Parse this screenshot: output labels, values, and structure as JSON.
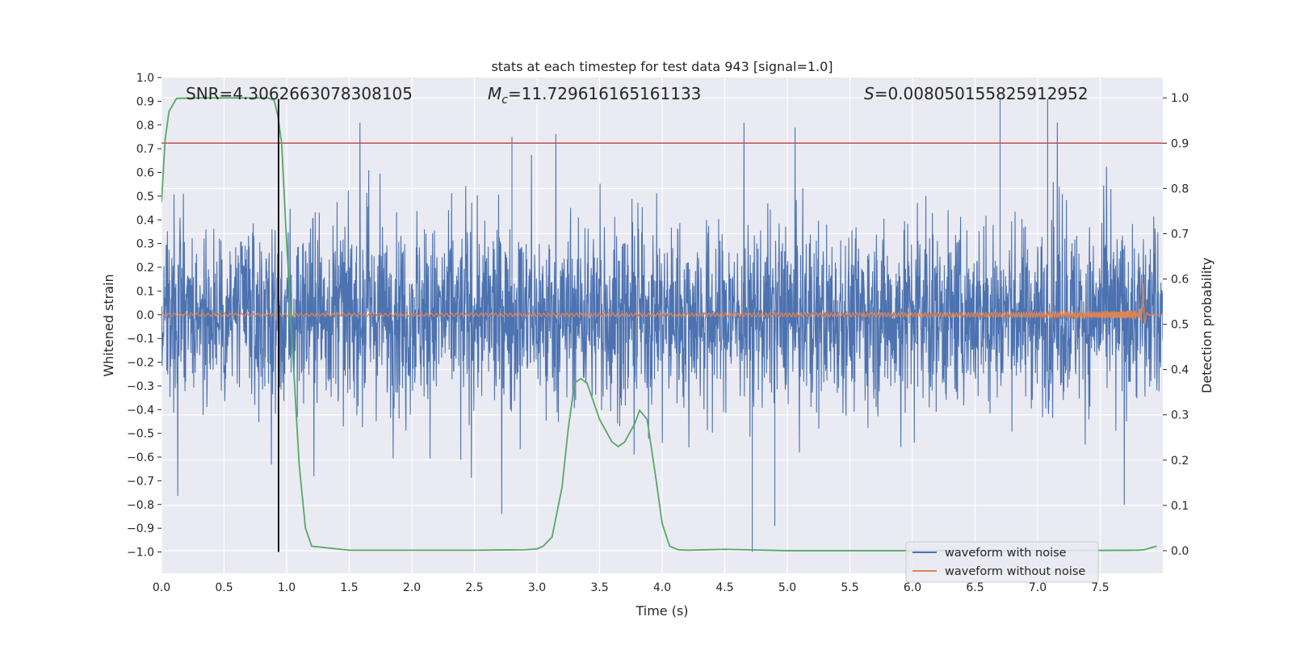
{
  "chart_data": {
    "type": "line",
    "title": "stats at each timestep for test data 943 [signal=1.0]",
    "xlabel": "Time (s)",
    "ylabel": "Whitened strain",
    "y2label": "Detection probability",
    "xlim": [
      0.0,
      8.0
    ],
    "ylim": [
      -1.09,
      1.0
    ],
    "y2lim": [
      -0.05,
      1.045
    ],
    "xticks": [
      0.0,
      0.5,
      1.0,
      1.5,
      2.0,
      2.5,
      3.0,
      3.5,
      4.0,
      4.5,
      5.0,
      5.5,
      6.0,
      6.5,
      7.0,
      7.5
    ],
    "xtick_labels": [
      "0.0",
      "0.5",
      "1.0",
      "1.5",
      "2.0",
      "2.5",
      "3.0",
      "3.5",
      "4.0",
      "4.5",
      "5.0",
      "5.5",
      "6.0",
      "6.5",
      "7.0",
      "7.5"
    ],
    "yticks": [
      1.0,
      0.9,
      0.8,
      0.7,
      0.6,
      0.5,
      0.4,
      0.3,
      0.2,
      0.1,
      0.0,
      -0.1,
      -0.2,
      -0.3,
      -0.4,
      -0.5,
      -0.6,
      -0.7,
      -0.8,
      -0.9,
      -1.0
    ],
    "ytick_labels": [
      "1.0",
      "0.9",
      "0.8",
      "0.7",
      "0.6",
      "0.5",
      "0.4",
      "0.3",
      "0.2",
      "0.1",
      "0.0",
      "−0.1",
      "−0.2",
      "−0.3",
      "−0.4",
      "−0.5",
      "−0.6",
      "−0.7",
      "−0.8",
      "−0.9",
      "−1.0"
    ],
    "y2ticks": [
      1.0,
      0.9,
      0.8,
      0.7,
      0.6,
      0.5,
      0.4,
      0.3,
      0.2,
      0.1,
      0.0
    ],
    "y2tick_labels": [
      "1.0",
      "0.9",
      "0.8",
      "0.7",
      "0.6",
      "0.5",
      "0.4",
      "0.3",
      "0.2",
      "0.1",
      "0.0"
    ],
    "annotations": {
      "snr": "SNR=4.3062663078308105",
      "mc_symbol": "M",
      "mc_sub": "c",
      "mc_value": "=11.729616165161133",
      "s_symbol": "S",
      "s_value": "=0.008050155825912952"
    },
    "legend": {
      "position": "lower-right",
      "entries": [
        {
          "label": "waveform with noise",
          "color": "#4c72b0"
        },
        {
          "label": "waveform without noise",
          "color": "#dd8452"
        }
      ]
    },
    "threshold": {
      "axis": "y2",
      "value": 0.9,
      "color": "#c44e52"
    },
    "event_marker": {
      "x": 0.935,
      "ymin": -1.0,
      "ymax": 0.91,
      "color": "#000000"
    },
    "noise_series": {
      "name": "waveform with noise",
      "color": "#4c72b0",
      "duration": 8.0,
      "core_amplitude": 0.33,
      "peak_range": [
        -1.0,
        0.91
      ],
      "note": "dense whitened noise trace; extreme peaks near x=6.7, 7.08 (+0.91) and x=4.72 (−1.0)"
    },
    "chirp_series": {
      "name": "waveform without noise",
      "color": "#dd8452",
      "start_amplitude": 0.006,
      "merger_time": 7.84,
      "merger_amplitude": 0.16,
      "ringdown_end": 7.9
    },
    "probability_series": {
      "name": "Detection probability",
      "axis": "y2",
      "color": "#55a868",
      "x": [
        0.0,
        0.03,
        0.06,
        0.12,
        0.3,
        0.6,
        0.85,
        0.9,
        0.93,
        0.96,
        1.0,
        1.05,
        1.1,
        1.15,
        1.2,
        1.5,
        2.0,
        2.5,
        2.9,
        3.0,
        3.05,
        3.12,
        3.2,
        3.25,
        3.3,
        3.35,
        3.4,
        3.5,
        3.6,
        3.65,
        3.7,
        3.78,
        3.82,
        3.88,
        3.95,
        4.0,
        4.06,
        4.13,
        4.2,
        4.5,
        5.0,
        6.0,
        7.0,
        7.8,
        7.85,
        7.9,
        7.95
      ],
      "values": [
        0.77,
        0.91,
        0.97,
        0.999,
        1.0,
        1.0,
        1.0,
        0.995,
        0.96,
        0.9,
        0.68,
        0.43,
        0.19,
        0.05,
        0.01,
        0.001,
        0.001,
        0.001,
        0.002,
        0.004,
        0.01,
        0.03,
        0.14,
        0.27,
        0.37,
        0.38,
        0.37,
        0.29,
        0.24,
        0.23,
        0.24,
        0.28,
        0.31,
        0.29,
        0.16,
        0.06,
        0.01,
        0.002,
        0.001,
        0.003,
        0.0,
        0.0,
        0.0,
        0.001,
        0.002,
        0.006,
        0.01
      ]
    }
  }
}
